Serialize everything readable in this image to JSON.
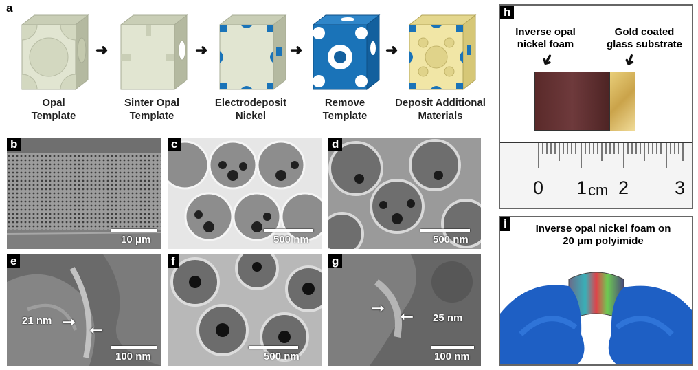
{
  "panel_a": {
    "label": "a",
    "steps": [
      {
        "caption_line1": "Opal",
        "caption_line2": "Template"
      },
      {
        "caption_line1": "Sinter Opal",
        "caption_line2": "Template"
      },
      {
        "caption_line1": "Electrodeposit",
        "caption_line2": "Nickel"
      },
      {
        "caption_line1": "Remove",
        "caption_line2": "Template"
      },
      {
        "caption_line1": "Deposit Additional",
        "caption_line2": "Materials"
      }
    ],
    "colors": {
      "template": "#dfe3cf",
      "nickel": "#1a73b8",
      "additional": "#f1e6a6"
    }
  },
  "sem_panels": [
    {
      "label": "b",
      "scale": "10 μm"
    },
    {
      "label": "c",
      "scale": "500 nm"
    },
    {
      "label": "d",
      "scale": "500 nm"
    },
    {
      "label": "e",
      "scale": "100 nm",
      "dimension": "21 nm"
    },
    {
      "label": "f",
      "scale": "500 nm"
    },
    {
      "label": "g",
      "scale": "100 nm",
      "dimension": "25 nm"
    }
  ],
  "panel_h": {
    "label": "h",
    "left_caption_line1": "Inverse opal",
    "left_caption_line2": "nickel foam",
    "right_caption_line1": "Gold coated",
    "right_caption_line2": "glass substrate",
    "ruler": {
      "n0": "0",
      "n1": "1",
      "unit": "cm",
      "n2": "2",
      "n3": "3"
    }
  },
  "panel_i": {
    "label": "i",
    "caption_line1": "Inverse opal nickel foam on",
    "caption_line2": "20 μm polyimide",
    "glove_color": "#1e5fc4"
  }
}
